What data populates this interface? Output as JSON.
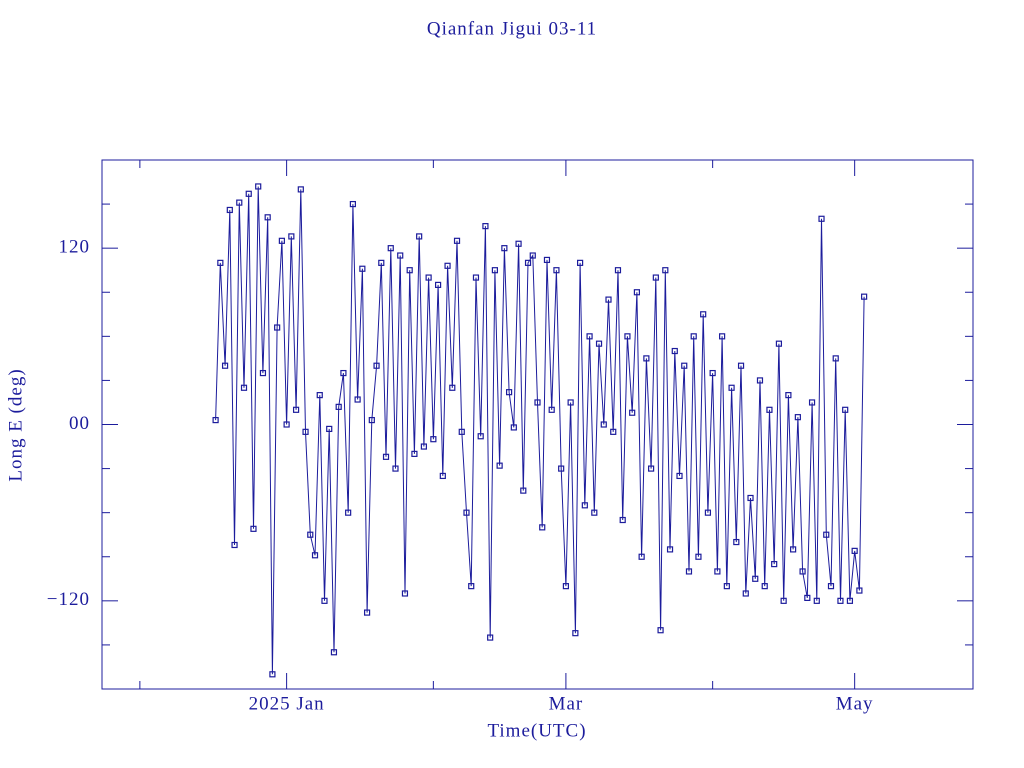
{
  "chart_data": {
    "type": "line",
    "title": "Qianfan Jigui 03-11",
    "xlabel": "Time(UTC)",
    "ylabel": "Long E (deg)",
    "color": "#1c1c9c",
    "xlim": [
      -39,
      145
    ],
    "xticks": [
      {
        "value": 0,
        "label": "2025 Jan"
      },
      {
        "value": 59,
        "label": "Mar"
      },
      {
        "value": 120,
        "label": "May"
      }
    ],
    "xminorticks": [
      -31,
      31,
      90
    ],
    "ylim": [
      -180,
      180
    ],
    "yticks": [
      {
        "value": -120,
        "label": "−120"
      },
      {
        "value": 0,
        "label": "00"
      },
      {
        "value": 120,
        "label": "120"
      }
    ],
    "yminorticks": [
      -150,
      -90,
      -60,
      -30,
      30,
      60,
      90,
      150
    ],
    "x": [
      -15,
      -14,
      -13,
      -12,
      -11,
      -10,
      -9,
      -8,
      -7,
      -6,
      -5,
      -4,
      -3,
      -2,
      -1,
      0,
      1,
      2,
      3,
      4,
      5,
      6,
      7,
      8,
      9,
      10,
      11,
      12,
      13,
      14,
      15,
      16,
      17,
      18,
      19,
      20,
      21,
      22,
      23,
      24,
      25,
      26,
      27,
      28,
      29,
      30,
      31,
      32,
      33,
      34,
      35,
      36,
      37,
      38,
      39,
      40,
      41,
      42,
      43,
      44,
      45,
      46,
      47,
      48,
      49,
      50,
      51,
      52,
      53,
      54,
      55,
      56,
      57,
      58,
      59,
      60,
      61,
      62,
      63,
      64,
      65,
      66,
      67,
      68,
      69,
      70,
      71,
      72,
      73,
      74,
      75,
      76,
      77,
      78,
      79,
      80,
      81,
      82,
      83,
      84,
      85,
      86,
      87,
      88,
      89,
      90,
      91,
      92,
      93,
      94,
      95,
      96,
      97,
      98,
      99,
      100,
      101,
      102,
      103,
      104,
      105,
      106,
      107,
      108,
      109,
      110,
      111,
      112,
      113,
      114,
      115,
      116,
      117,
      118,
      119,
      120,
      121,
      122
    ],
    "values": [
      3,
      110,
      40,
      146,
      -82,
      151,
      25,
      157,
      -71,
      162,
      35,
      141,
      -170,
      66,
      125,
      0,
      128,
      10,
      160,
      -5,
      -75,
      -89,
      20,
      -120,
      -3,
      -155,
      12,
      35,
      -60,
      150,
      17,
      106,
      -128,
      3,
      40,
      110,
      -22,
      120,
      -30,
      115,
      -115,
      105,
      -20,
      128,
      -15,
      100,
      -10,
      95,
      -35,
      108,
      25,
      125,
      -5,
      -60,
      -110,
      100,
      -8,
      135,
      -145,
      105,
      -28,
      120,
      22,
      -2,
      123,
      -45,
      110,
      115,
      15,
      -70,
      112,
      10,
      105,
      -30,
      -110,
      15,
      -142,
      110,
      -55,
      60,
      -60,
      55,
      0,
      85,
      -5,
      105,
      -65,
      60,
      8,
      90,
      -90,
      45,
      -30,
      100,
      -140,
      105,
      -85,
      50,
      -35,
      40,
      -100,
      60,
      -90,
      75,
      -60,
      35,
      -100,
      60,
      -110,
      25,
      -80,
      40,
      -115,
      -50,
      -105,
      30,
      -110,
      10,
      -95,
      55,
      -120,
      20,
      -85,
      5,
      -100,
      -118,
      15,
      -120,
      140,
      -75,
      -110,
      45,
      -120,
      10,
      -120,
      -86,
      -113,
      87
    ]
  }
}
